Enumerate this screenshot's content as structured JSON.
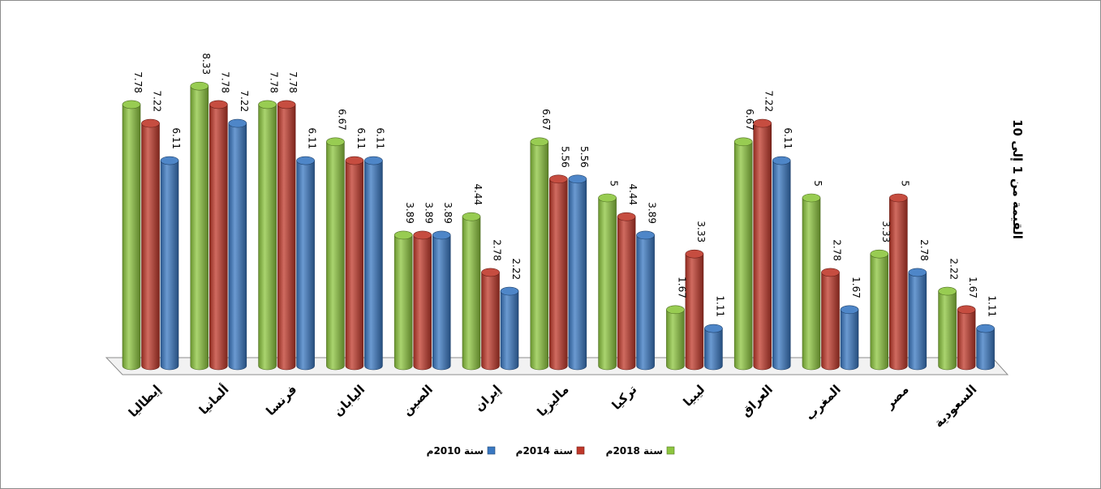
{
  "chart_data": {
    "type": "bar",
    "categories": [
      "إيطاليا",
      "ألمانيا",
      "فرنسا",
      "اليابان",
      "الصين",
      "إيران",
      "ماليزيا",
      "تركيا",
      "ليبيا",
      "العراق",
      "المغرب",
      "مصر",
      "السعودية"
    ],
    "series": [
      {
        "name": "سنة 2018م",
        "color": "#8dc63f",
        "values": [
          7.78,
          8.33,
          7.78,
          6.67,
          3.89,
          4.44,
          6.67,
          5,
          1.67,
          6.67,
          5,
          3.33,
          2.22
        ],
        "labels": [
          "7.78",
          "8.33",
          "7.78",
          "6.67",
          "3.89",
          "4.44",
          "6.67",
          "5",
          "1.67",
          "6.67",
          "5",
          "3.33",
          "2.22"
        ]
      },
      {
        "name": "سنة 2014م",
        "color": "#c0392b",
        "values": [
          7.22,
          7.78,
          7.78,
          6.11,
          3.89,
          2.78,
          5.56,
          4.44,
          3.33,
          7.22,
          2.78,
          5,
          1.67
        ],
        "labels": [
          "7.22",
          "7.78",
          "7.78",
          "6.11",
          "3.89",
          "2.78",
          "5.56",
          "4.44",
          "3.33",
          "7.22",
          "2.78",
          "5",
          "1.67"
        ]
      },
      {
        "name": "سنة 2010م",
        "color": "#3a78c2",
        "values": [
          6.11,
          7.22,
          6.11,
          6.11,
          3.89,
          2.22,
          5.56,
          3.89,
          1.11,
          6.11,
          1.67,
          2.78,
          1.11
        ],
        "labels": [
          "6.11",
          "7.22",
          "6.11",
          "6.11",
          "3.89",
          "2.22",
          "5.56",
          "3.89",
          "1.11",
          "6.11",
          "1.67",
          "2.78",
          "1.11"
        ]
      }
    ],
    "xlabel": "",
    "ylabel": "القيمة من 1 إلى 10",
    "ylim": [
      0,
      10
    ],
    "grid": false,
    "legend_position": "bottom",
    "style": "3d-cylinder"
  }
}
